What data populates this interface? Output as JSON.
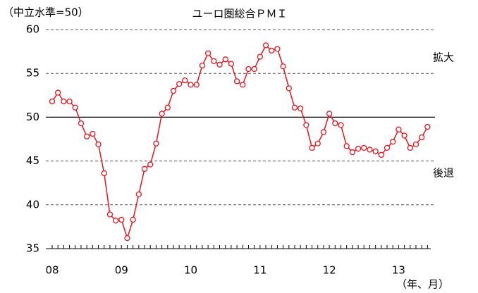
{
  "chart_data": {
    "type": "line",
    "title": "ユーロ圏総合ＰＭＩ",
    "y_axis_note": "（中立水準=50）",
    "x_axis_note": "（年、月）",
    "annotations": [
      "拡大",
      "後退"
    ],
    "categories": [
      "08",
      null,
      null,
      null,
      null,
      null,
      null,
      null,
      null,
      null,
      null,
      null,
      "09",
      null,
      null,
      null,
      null,
      null,
      null,
      null,
      null,
      null,
      null,
      null,
      "10",
      null,
      null,
      null,
      null,
      null,
      null,
      null,
      null,
      null,
      null,
      null,
      "11",
      null,
      null,
      null,
      null,
      null,
      null,
      null,
      null,
      null,
      null,
      null,
      "12",
      null,
      null,
      null,
      null,
      null,
      null,
      null,
      null,
      null,
      null,
      null,
      "13",
      null,
      null,
      null,
      null,
      null
    ],
    "series": [
      {
        "name": "ユーロ圏総合ＰＭＩ",
        "color": "#e8141c",
        "values": [
          51.8,
          52.8,
          51.8,
          51.8,
          51.1,
          49.3,
          47.8,
          48.1,
          46.9,
          43.6,
          38.9,
          38.2,
          38.3,
          36.2,
          38.3,
          41.2,
          44.1,
          44.6,
          47.0,
          50.4,
          51.1,
          53.0,
          53.8,
          54.2,
          53.7,
          53.7,
          55.9,
          57.3,
          56.4,
          56.0,
          56.6,
          56.1,
          54.1,
          53.7,
          55.5,
          55.5,
          56.9,
          58.2,
          57.6,
          57.8,
          55.8,
          53.3,
          51.1,
          51.0,
          49.1,
          46.5,
          47.0,
          48.3,
          50.4,
          49.3,
          49.1,
          46.7,
          46.0,
          46.4,
          46.5,
          46.3,
          46.1,
          45.7,
          46.5,
          47.2,
          48.6,
          47.9,
          46.5,
          46.9,
          47.7,
          48.9
        ]
      }
    ],
    "ylim": [
      35,
      60
    ],
    "yticks": [
      35,
      40,
      45,
      50,
      55,
      60
    ],
    "reference_line": 50,
    "grid": true
  }
}
